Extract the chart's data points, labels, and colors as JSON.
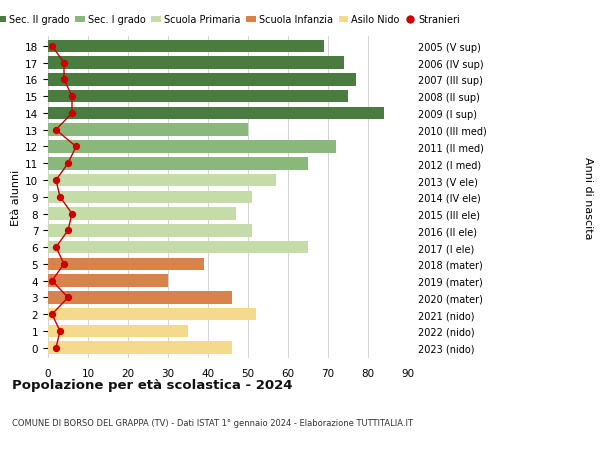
{
  "ages": [
    18,
    17,
    16,
    15,
    14,
    13,
    12,
    11,
    10,
    9,
    8,
    7,
    6,
    5,
    4,
    3,
    2,
    1,
    0
  ],
  "years": [
    "2005 (V sup)",
    "2006 (IV sup)",
    "2007 (III sup)",
    "2008 (II sup)",
    "2009 (I sup)",
    "2010 (III med)",
    "2011 (II med)",
    "2012 (I med)",
    "2013 (V ele)",
    "2014 (IV ele)",
    "2015 (III ele)",
    "2016 (II ele)",
    "2017 (I ele)",
    "2018 (mater)",
    "2019 (mater)",
    "2020 (mater)",
    "2021 (nido)",
    "2022 (nido)",
    "2023 (nido)"
  ],
  "bar_values": [
    69,
    74,
    77,
    75,
    84,
    50,
    72,
    65,
    57,
    51,
    47,
    51,
    65,
    39,
    30,
    46,
    52,
    35,
    46
  ],
  "bar_colors": [
    "#4a7c3f",
    "#4a7c3f",
    "#4a7c3f",
    "#4a7c3f",
    "#4a7c3f",
    "#8ab87a",
    "#8ab87a",
    "#8ab87a",
    "#c5dba8",
    "#c5dba8",
    "#c5dba8",
    "#c5dba8",
    "#c5dba8",
    "#d9824a",
    "#d9824a",
    "#d9824a",
    "#f5d98c",
    "#f5d98c",
    "#f5d98c"
  ],
  "stranieri_values": [
    1,
    4,
    4,
    6,
    6,
    2,
    7,
    5,
    2,
    3,
    6,
    5,
    2,
    4,
    1,
    5,
    1,
    3,
    2
  ],
  "legend_labels": [
    "Sec. II grado",
    "Sec. I grado",
    "Scuola Primaria",
    "Scuola Infanzia",
    "Asilo Nido",
    "Stranieri"
  ],
  "legend_colors": [
    "#4a7c3f",
    "#8ab87a",
    "#c5dba8",
    "#d9824a",
    "#f5d98c",
    "#cc0000"
  ],
  "ylabel_left": "Età alunni",
  "ylabel_right": "Anni di nascita",
  "title": "Popolazione per età scolastica - 2024",
  "subtitle": "COMUNE DI BORSO DEL GRAPPA (TV) - Dati ISTAT 1° gennaio 2024 - Elaborazione TUTTITALIA.IT",
  "xlim": [
    0,
    90
  ],
  "xticks": [
    0,
    10,
    20,
    30,
    40,
    50,
    60,
    70,
    80,
    90
  ],
  "bg_color": "#ffffff",
  "grid_color": "#cccccc",
  "stranieri_color": "#cc0000",
  "bar_height": 0.75
}
